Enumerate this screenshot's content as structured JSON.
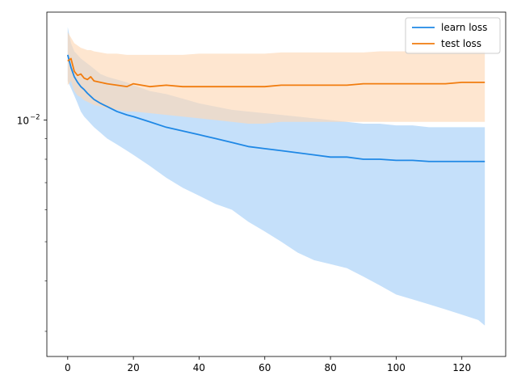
{
  "chart_data": {
    "type": "line",
    "title": "",
    "xlabel": "",
    "ylabel": "",
    "yscale": "log",
    "xlim": [
      -6.35,
      133.35
    ],
    "ylim": [
      0.0026,
      0.0185
    ],
    "xticks": [
      0,
      20,
      40,
      60,
      80,
      100,
      120
    ],
    "xtick_labels": [
      "0",
      "20",
      "40",
      "60",
      "80",
      "100",
      "120"
    ],
    "yticks_major": [
      0.01
    ],
    "ytick_labels": [
      "10",
      "−2"
    ],
    "yticks_minor": [
      0.003,
      0.004,
      0.005,
      0.006,
      0.007,
      0.008,
      0.009
    ],
    "grid": false,
    "legend": "top-right",
    "series": [
      {
        "name": "learn loss",
        "color": "#1f88e5",
        "band_color": "#a6cff7",
        "x": [
          0,
          1,
          2,
          3,
          4,
          5,
          6,
          7,
          8,
          10,
          12,
          15,
          18,
          20,
          25,
          30,
          35,
          40,
          45,
          50,
          55,
          60,
          65,
          70,
          75,
          80,
          85,
          90,
          95,
          100,
          105,
          110,
          115,
          120,
          125,
          127
        ],
        "values": [
          0.0145,
          0.0135,
          0.0128,
          0.0124,
          0.0121,
          0.0119,
          0.01165,
          0.01145,
          0.01125,
          0.011,
          0.0108,
          0.0105,
          0.0103,
          0.0102,
          0.0099,
          0.0096,
          0.0094,
          0.0092,
          0.009,
          0.0088,
          0.0086,
          0.0085,
          0.0084,
          0.0083,
          0.0082,
          0.0081,
          0.0081,
          0.008,
          0.008,
          0.00795,
          0.00795,
          0.0079,
          0.0079,
          0.0079,
          0.0079,
          0.0079
        ],
        "band_low": [
          0.0125,
          0.012,
          0.0115,
          0.011,
          0.0105,
          0.0102,
          0.01,
          0.0098,
          0.0096,
          0.0093,
          0.009,
          0.0087,
          0.0084,
          0.0082,
          0.0077,
          0.0072,
          0.0068,
          0.0065,
          0.0062,
          0.006,
          0.0056,
          0.0053,
          0.005,
          0.0047,
          0.0045,
          0.0044,
          0.0043,
          0.0041,
          0.0039,
          0.0037,
          0.0036,
          0.0035,
          0.0034,
          0.0033,
          0.0032,
          0.0031
        ],
        "band_high": [
          0.017,
          0.0155,
          0.0148,
          0.0145,
          0.0142,
          0.014,
          0.0138,
          0.0136,
          0.0134,
          0.013,
          0.0128,
          0.0126,
          0.0124,
          0.0122,
          0.0118,
          0.0116,
          0.0113,
          0.011,
          0.0108,
          0.0106,
          0.0105,
          0.0104,
          0.0103,
          0.0102,
          0.0101,
          0.01,
          0.0099,
          0.0098,
          0.0098,
          0.0097,
          0.0097,
          0.0096,
          0.0096,
          0.0096,
          0.0096,
          0.0096
        ]
      },
      {
        "name": "test loss",
        "color": "#f17c0e",
        "band_color": "#fdd8b7",
        "x": [
          0,
          1,
          2,
          3,
          4,
          5,
          6,
          7,
          8,
          10,
          12,
          15,
          18,
          20,
          25,
          30,
          35,
          40,
          45,
          50,
          55,
          60,
          65,
          70,
          75,
          80,
          85,
          90,
          95,
          100,
          105,
          110,
          115,
          120,
          125,
          127
        ],
        "values": [
          0.014,
          0.0142,
          0.0132,
          0.0129,
          0.013,
          0.0127,
          0.0126,
          0.0128,
          0.0125,
          0.0124,
          0.0123,
          0.0122,
          0.0121,
          0.0123,
          0.0121,
          0.0122,
          0.0121,
          0.0121,
          0.0121,
          0.0121,
          0.0121,
          0.0121,
          0.0122,
          0.0122,
          0.0122,
          0.0122,
          0.0122,
          0.0123,
          0.0123,
          0.0123,
          0.0123,
          0.0123,
          0.0123,
          0.0124,
          0.0124,
          0.0124
        ],
        "band_low": [
          0.0122,
          0.0125,
          0.0118,
          0.0115,
          0.0114,
          0.0112,
          0.0111,
          0.011,
          0.0109,
          0.0108,
          0.0107,
          0.0106,
          0.0105,
          0.0105,
          0.0104,
          0.0103,
          0.0102,
          0.0101,
          0.01,
          0.0099,
          0.0098,
          0.0098,
          0.0099,
          0.0099,
          0.0099,
          0.0099,
          0.0099,
          0.0099,
          0.0099,
          0.0099,
          0.0099,
          0.0099,
          0.0099,
          0.0099,
          0.0099,
          0.0099
        ],
        "band_high": [
          0.0165,
          0.016,
          0.0155,
          0.0153,
          0.0151,
          0.015,
          0.0149,
          0.0149,
          0.0148,
          0.0147,
          0.0146,
          0.0146,
          0.0145,
          0.0145,
          0.0145,
          0.0145,
          0.0145,
          0.0146,
          0.0146,
          0.0146,
          0.0146,
          0.0146,
          0.0147,
          0.0147,
          0.0147,
          0.0147,
          0.0147,
          0.0147,
          0.0148,
          0.0148,
          0.0148,
          0.0148,
          0.0148,
          0.0148,
          0.0148,
          0.0148
        ]
      }
    ]
  }
}
